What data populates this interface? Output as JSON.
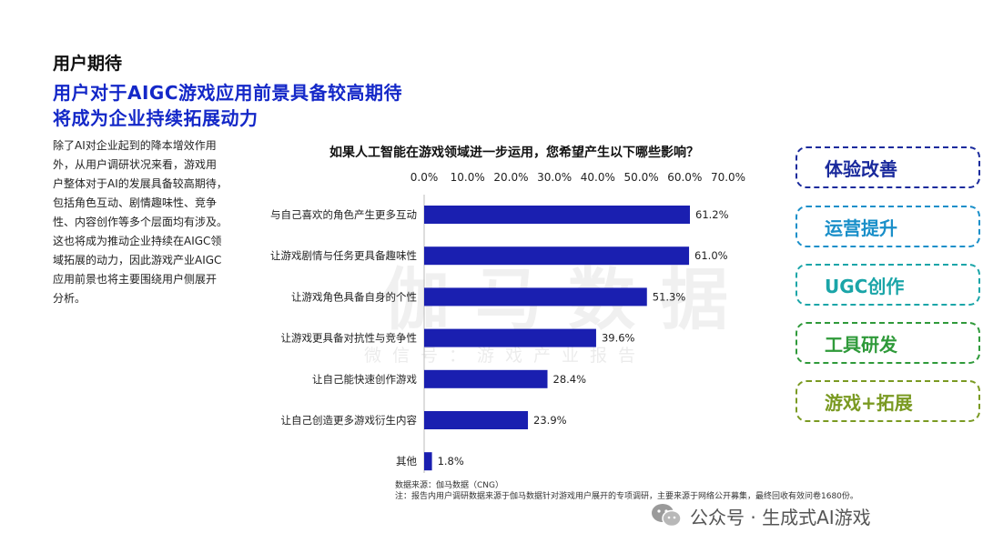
{
  "header": {
    "section": "用户期待",
    "headline_line1": "用户对于AIGC游戏应用前景具备较高期待",
    "headline_line2": "将成为企业持续拓展动力"
  },
  "body_text": "除了AI对企业起到的降本增效作用\n外，从用户调研状况来看，游戏用\n户整体对于AI的发展具备较高期待，\n包括角色互动、剧情趣味性、竞争\n性、内容创作等多个层面均有涉及。\n这也将成为推动企业持续在AIGC领\n域拓展的动力，因此游戏产业AIGC\n应用前景也将主要围绕用户侧展开\n分析。",
  "chart_data": {
    "type": "bar",
    "orientation": "horizontal",
    "title": "如果人工智能在游戏领域进一步运用，您希望产生以下哪些影响？",
    "categories": [
      "与自己喜欢的角色产生更多互动",
      "让游戏剧情与任务更具备趣味性",
      "让游戏角色具备自身的个性",
      "让游戏更具备对抗性与竞争性",
      "让自己能快速创作游戏",
      "让自己创造更多游戏衍生内容",
      "其他"
    ],
    "values": [
      61.2,
      61.0,
      51.3,
      39.6,
      28.4,
      23.9,
      1.8
    ],
    "value_labels": [
      "61.2%",
      "61.0%",
      "51.3%",
      "39.6%",
      "28.4%",
      "23.9%",
      "1.8%"
    ],
    "xlim": [
      0,
      70
    ],
    "ticks": [
      "0.0%",
      "10.0%",
      "20.0%",
      "30.0%",
      "40.0%",
      "50.0%",
      "60.0%",
      "70.0%"
    ],
    "axis_position": "top",
    "grid": false,
    "bar_color": "#1a1fb0"
  },
  "watermark": {
    "main": "伽马数据",
    "sub": "微信号：游戏产业报告"
  },
  "tags": [
    {
      "label": "体验改善",
      "color": "#1a2a9c"
    },
    {
      "label": "运营提升",
      "color": "#1a8fc9"
    },
    {
      "label": "UGC创作",
      "color": "#1aa5a8"
    },
    {
      "label": "工具研发",
      "color": "#2f9a3a"
    },
    {
      "label": "游戏+拓展",
      "color": "#7a9a22"
    }
  ],
  "footnotes": {
    "source": "数据来源：伽马数据（CNG）",
    "note": "注：报告内用户调研数据来源于伽马数据针对游戏用户展开的专项调研，主要来源于网络公开募集，最终回收有效问卷1680份。"
  },
  "wechat": {
    "text": "公众号 · 生成式AI游戏",
    "icon": "wechat-icon"
  }
}
